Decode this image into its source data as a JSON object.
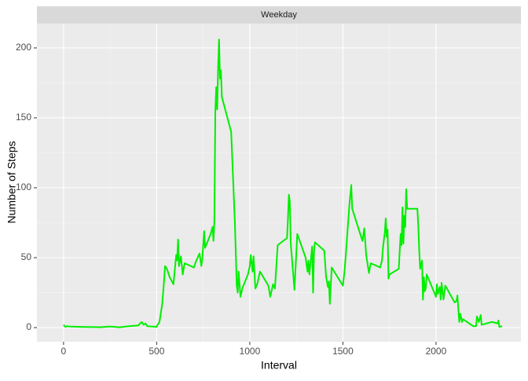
{
  "chart_data": {
    "type": "line",
    "facet": "Weekday",
    "x_label": "Interval",
    "y_label": "Number of Steps",
    "xlim": [
      -143,
      2456
    ],
    "ylim": [
      -10.1,
      217.4
    ],
    "xticks": [
      0,
      500,
      1000,
      1500,
      2000
    ],
    "yticks": [
      0,
      50,
      100,
      150,
      200
    ],
    "grid": true,
    "x": [
      0,
      10,
      20,
      30,
      100,
      200,
      250,
      300,
      350,
      400,
      420,
      430,
      440,
      450,
      500,
      505,
      515,
      530,
      540,
      545,
      555,
      570,
      590,
      600,
      605,
      610,
      615,
      620,
      630,
      640,
      650,
      700,
      710,
      730,
      740,
      745,
      755,
      760,
      790,
      800,
      805,
      810,
      815,
      820,
      825,
      830,
      835,
      840,
      845,
      850,
      870,
      900,
      920,
      930,
      935,
      940,
      950,
      960,
      990,
      1000,
      1005,
      1015,
      1020,
      1030,
      1040,
      1055,
      1100,
      1110,
      1125,
      1135,
      1150,
      1200,
      1205,
      1210,
      1215,
      1220,
      1240,
      1255,
      1300,
      1310,
      1315,
      1320,
      1335,
      1340,
      1345,
      1350,
      1400,
      1410,
      1420,
      1425,
      1430,
      1440,
      1500,
      1510,
      1520,
      1535,
      1545,
      1550,
      1605,
      1615,
      1625,
      1640,
      1645,
      1650,
      1700,
      1710,
      1715,
      1725,
      1730,
      1735,
      1740,
      1745,
      1750,
      1800,
      1810,
      1815,
      1820,
      1825,
      1830,
      1835,
      1840,
      1845,
      1900,
      1905,
      1910,
      1915,
      1925,
      1930,
      1935,
      1940,
      1945,
      1950,
      2000,
      2005,
      2010,
      2020,
      2025,
      2030,
      2040,
      2050,
      2100,
      2110,
      2115,
      2120,
      2125,
      2130,
      2140,
      2145,
      2200,
      2215,
      2220,
      2230,
      2240,
      2245,
      2300,
      2330,
      2335,
      2340,
      2355
    ],
    "series": [
      {
        "color": "#00ee00",
        "values": [
          2,
          0.5,
          1,
          0.8,
          0.5,
          0.3,
          0.8,
          0.2,
          1,
          1.5,
          4,
          2,
          3,
          1,
          0.5,
          2,
          4,
          17,
          34,
          44,
          42,
          36,
          31,
          45,
          52,
          48,
          63,
          44,
          51,
          38,
          46,
          43,
          47,
          53,
          44,
          49,
          69,
          57,
          67,
          72,
          62,
          77,
          155,
          172,
          156,
          186,
          206,
          178,
          184,
          165,
          155,
          140,
          75,
          30,
          25,
          40,
          22,
          28,
          38,
          44,
          52,
          40,
          51,
          28,
          31,
          40,
          30,
          22,
          31,
          28,
          59,
          64,
          78,
          95,
          90,
          60,
          27,
          67,
          50,
          40,
          48,
          38,
          58,
          25,
          55,
          61,
          55,
          36,
          29,
          33,
          17,
          43,
          30,
          42,
          60,
          88,
          102,
          85,
          62,
          71,
          52,
          39,
          43,
          46,
          43,
          48,
          57,
          68,
          78,
          65,
          70,
          35,
          38,
          42,
          67,
          59,
          86,
          60,
          80,
          72,
          99,
          85,
          85,
          72,
          55,
          42,
          48,
          20,
          36,
          26,
          28,
          38,
          22,
          31,
          24,
          29,
          20,
          32,
          20,
          30,
          18,
          19,
          23,
          13,
          4,
          10,
          4,
          6,
          1,
          1,
          8,
          4,
          9,
          2,
          4,
          3,
          5,
          0.5,
          1
        ]
      }
    ]
  }
}
